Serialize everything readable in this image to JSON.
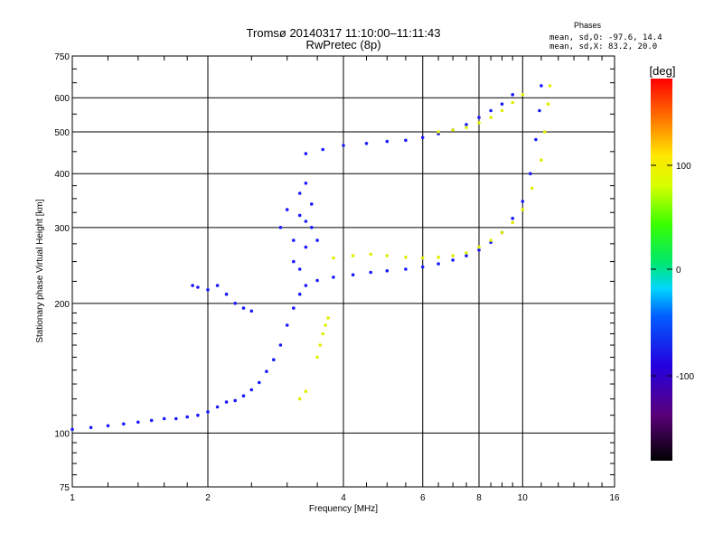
{
  "chart_data": {
    "type": "scatter",
    "title": "Tromsø 20140317 11:10:00–11:11:43",
    "subtitle": "RwPretec (8p)",
    "xlabel": "Frequency [MHz]",
    "ylabel": "Stationary phase Virtual Height [km]",
    "x_scale": "log",
    "y_scale": "log",
    "xlim": [
      1,
      16
    ],
    "ylim": [
      75,
      750
    ],
    "x_ticks": [
      "1",
      "2",
      "4",
      "6",
      "8",
      "10",
      "16"
    ],
    "y_ticks": [
      "75",
      "100",
      "200",
      "300",
      "400",
      "500",
      "600",
      "750"
    ],
    "grid": true,
    "colorbar": {
      "label": "[deg]",
      "min": -180,
      "max": 180,
      "ticks": [
        "100",
        "0",
        "-100"
      ]
    },
    "stats": {
      "heading": "Phases",
      "line_o": "mean, sd,O: -97.6, 14.4",
      "line_x": "mean, sd,X:  83.2, 20.0"
    },
    "series": [
      {
        "trace": "E/F1-region lower trace (O-mode)",
        "phase_deg": -105,
        "points": [
          [
            1.0,
            102
          ],
          [
            1.1,
            103
          ],
          [
            1.2,
            104
          ],
          [
            1.3,
            105
          ],
          [
            1.4,
            106
          ],
          [
            1.5,
            107
          ],
          [
            1.6,
            108
          ],
          [
            1.7,
            108
          ],
          [
            1.8,
            109
          ],
          [
            1.9,
            110
          ],
          [
            2.0,
            112
          ],
          [
            2.1,
            115
          ],
          [
            2.2,
            118
          ],
          [
            2.3,
            119
          ],
          [
            2.4,
            122
          ],
          [
            2.5,
            126
          ],
          [
            2.6,
            131
          ],
          [
            2.7,
            139
          ],
          [
            2.8,
            148
          ],
          [
            2.9,
            160
          ],
          [
            3.0,
            178
          ],
          [
            3.1,
            195
          ],
          [
            3.2,
            210
          ],
          [
            3.3,
            220
          ],
          [
            3.5,
            226
          ],
          [
            3.8,
            230
          ],
          [
            4.2,
            233
          ],
          [
            4.6,
            236
          ],
          [
            5.0,
            238
          ],
          [
            5.5,
            240
          ],
          [
            6.0,
            243
          ],
          [
            6.5,
            247
          ],
          [
            7.0,
            252
          ],
          [
            7.5,
            258
          ],
          [
            8.0,
            266
          ],
          [
            8.5,
            277
          ],
          [
            9.0,
            292
          ],
          [
            9.5,
            315
          ],
          [
            10.0,
            345
          ],
          [
            10.4,
            400
          ],
          [
            10.7,
            480
          ],
          [
            10.9,
            560
          ],
          [
            11.0,
            640
          ]
        ]
      },
      {
        "trace": "Spread echoes near 3 MHz (O-mode)",
        "phase_deg": -105,
        "points": [
          [
            2.9,
            300
          ],
          [
            3.0,
            330
          ],
          [
            3.1,
            280
          ],
          [
            3.1,
            250
          ],
          [
            3.2,
            360
          ],
          [
            3.2,
            240
          ],
          [
            3.3,
            310
          ],
          [
            3.3,
            270
          ],
          [
            3.4,
            340
          ],
          [
            3.4,
            300
          ],
          [
            3.5,
            280
          ],
          [
            3.3,
            380
          ],
          [
            3.2,
            320
          ]
        ]
      },
      {
        "trace": "Sporadic echoes 1.8–2.6 MHz (O-mode)",
        "phase_deg": -105,
        "points": [
          [
            1.85,
            220
          ],
          [
            1.9,
            218
          ],
          [
            2.0,
            215
          ],
          [
            2.1,
            220
          ],
          [
            2.2,
            210
          ],
          [
            2.3,
            200
          ],
          [
            2.4,
            195
          ],
          [
            2.5,
            192
          ]
        ]
      },
      {
        "trace": "F2 multi-hop trace (O-mode)",
        "phase_deg": -100,
        "points": [
          [
            3.3,
            445
          ],
          [
            3.6,
            455
          ],
          [
            4.0,
            465
          ],
          [
            4.5,
            470
          ],
          [
            5.0,
            475
          ],
          [
            5.5,
            478
          ],
          [
            6.0,
            485
          ],
          [
            6.5,
            495
          ],
          [
            7.0,
            505
          ],
          [
            7.5,
            520
          ],
          [
            8.0,
            540
          ],
          [
            8.5,
            560
          ],
          [
            9.0,
            580
          ],
          [
            9.5,
            610
          ]
        ]
      },
      {
        "trace": "F-region trace (X-mode)",
        "phase_deg": 95,
        "points": [
          [
            3.8,
            255
          ],
          [
            4.2,
            258
          ],
          [
            4.6,
            260
          ],
          [
            5.0,
            258
          ],
          [
            5.5,
            256
          ],
          [
            6.0,
            255
          ],
          [
            6.5,
            256
          ],
          [
            7.0,
            258
          ],
          [
            7.5,
            262
          ],
          [
            8.0,
            270
          ],
          [
            8.5,
            280
          ],
          [
            9.0,
            292
          ],
          [
            9.5,
            308
          ],
          [
            10.0,
            330
          ],
          [
            10.5,
            370
          ],
          [
            11.0,
            430
          ],
          [
            11.2,
            500
          ],
          [
            11.4,
            580
          ],
          [
            11.5,
            640
          ]
        ]
      },
      {
        "trace": "Low X-mode segment",
        "phase_deg": 90,
        "points": [
          [
            3.5,
            150
          ],
          [
            3.55,
            160
          ],
          [
            3.6,
            170
          ],
          [
            3.65,
            178
          ],
          [
            3.7,
            185
          ],
          [
            3.2,
            120
          ],
          [
            3.3,
            125
          ]
        ]
      },
      {
        "trace": "Multi-hop X-mode",
        "phase_deg": 90,
        "points": [
          [
            6.5,
            500
          ],
          [
            7.0,
            505
          ],
          [
            7.5,
            512
          ],
          [
            8.0,
            525
          ],
          [
            8.5,
            540
          ],
          [
            9.0,
            560
          ],
          [
            9.5,
            585
          ],
          [
            10.0,
            610
          ]
        ]
      }
    ]
  }
}
